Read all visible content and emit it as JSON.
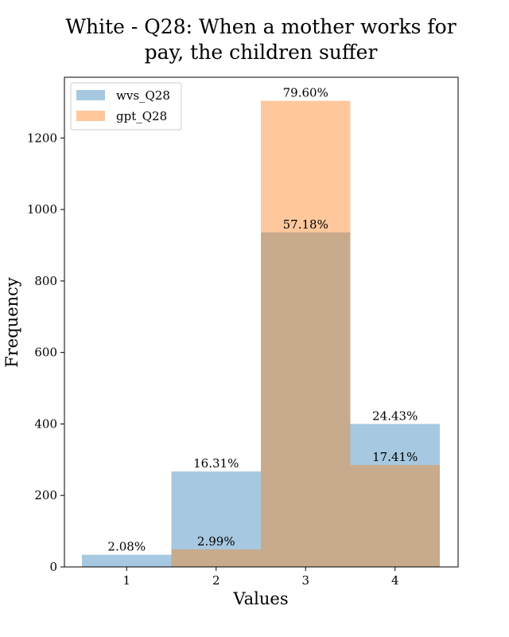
{
  "chart_data": {
    "type": "bar",
    "title_lines": [
      "White - Q28: When a mother works for",
      "pay, the children suffer"
    ],
    "xlabel": "Values",
    "ylabel": "Frequency",
    "categories": [
      "1",
      "2",
      "3",
      "4"
    ],
    "ylim": [
      0,
      1370
    ],
    "yticks": [
      0,
      200,
      400,
      600,
      800,
      1000,
      1200
    ],
    "legend_position": "top-left",
    "series": [
      {
        "name": "wvs_Q28",
        "color": "#a6c8e0",
        "values": [
          34,
          267,
          936,
          400
        ],
        "labels": [
          "2.08%",
          "16.31%",
          "57.18%",
          "24.43%"
        ]
      },
      {
        "name": "gpt_Q28",
        "color": "#ffc89c",
        "values": [
          0,
          49,
          1304,
          285
        ],
        "labels": [
          "",
          "2.99%",
          "79.60%",
          "17.41%"
        ]
      }
    ],
    "overlap_color": "#c8aa8d"
  }
}
